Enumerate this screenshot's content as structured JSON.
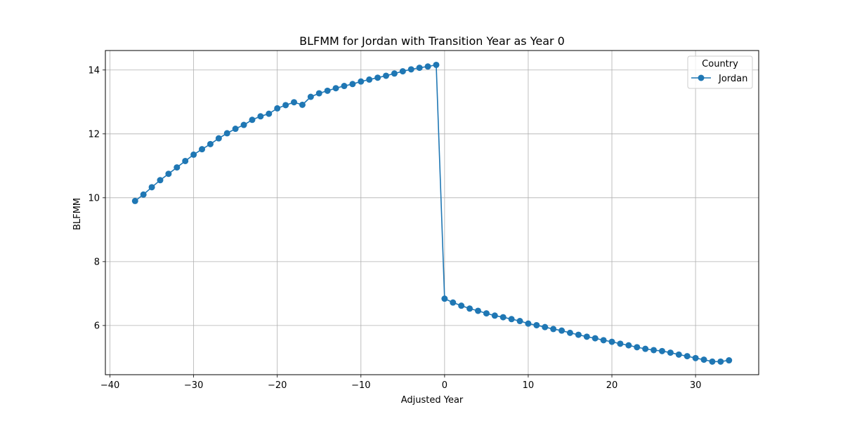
{
  "chart_data": {
    "type": "line",
    "title": "BLFMM for Jordan with Transition Year as Year 0",
    "xlabel": "Adjusted Year",
    "ylabel": "BLFMM",
    "xlim": [
      -40.55,
      37.55
    ],
    "ylim": [
      4.46,
      14.61
    ],
    "xticks": [
      -40,
      -30,
      -20,
      -10,
      0,
      10,
      20,
      30
    ],
    "yticks": [
      6,
      8,
      10,
      12,
      14
    ],
    "xtick_labels": [
      "−40",
      "−30",
      "−20",
      "−10",
      "0",
      "10",
      "20",
      "30"
    ],
    "ytick_labels": [
      "6",
      "8",
      "10",
      "12",
      "14"
    ],
    "grid": true,
    "legend": {
      "title": "Country",
      "position": "top-right"
    },
    "series": [
      {
        "name": "Jordan",
        "color": "#1f77b4",
        "marker": "circle",
        "x": [
          -37,
          -36,
          -35,
          -34,
          -33,
          -32,
          -31,
          -30,
          -29,
          -28,
          -27,
          -26,
          -25,
          -24,
          -23,
          -22,
          -21,
          -20,
          -19,
          -18,
          -17,
          -16,
          -15,
          -14,
          -13,
          -12,
          -11,
          -10,
          -9,
          -8,
          -7,
          -6,
          -5,
          -4,
          -3,
          -2,
          -1,
          0,
          1,
          2,
          3,
          4,
          5,
          6,
          7,
          8,
          9,
          10,
          11,
          12,
          13,
          14,
          15,
          16,
          17,
          18,
          19,
          20,
          21,
          22,
          23,
          24,
          25,
          26,
          27,
          28,
          29,
          30,
          31,
          32,
          33,
          34
        ],
        "y": [
          9.9,
          10.1,
          10.33,
          10.55,
          10.75,
          10.95,
          11.15,
          11.35,
          11.52,
          11.68,
          11.86,
          12.02,
          12.16,
          12.28,
          12.44,
          12.55,
          12.63,
          12.8,
          12.9,
          12.99,
          12.91,
          13.16,
          13.27,
          13.35,
          13.43,
          13.5,
          13.56,
          13.64,
          13.7,
          13.76,
          13.82,
          13.89,
          13.96,
          14.02,
          14.07,
          14.11,
          14.16,
          6.84,
          6.72,
          6.62,
          6.53,
          6.46,
          6.38,
          6.31,
          6.26,
          6.2,
          6.14,
          6.06,
          6.01,
          5.95,
          5.89,
          5.84,
          5.77,
          5.71,
          5.65,
          5.6,
          5.54,
          5.49,
          5.43,
          5.38,
          5.32,
          5.27,
          5.23,
          5.2,
          5.15,
          5.09,
          5.04,
          4.98,
          4.93,
          4.87,
          4.87,
          4.91
        ]
      }
    ]
  }
}
